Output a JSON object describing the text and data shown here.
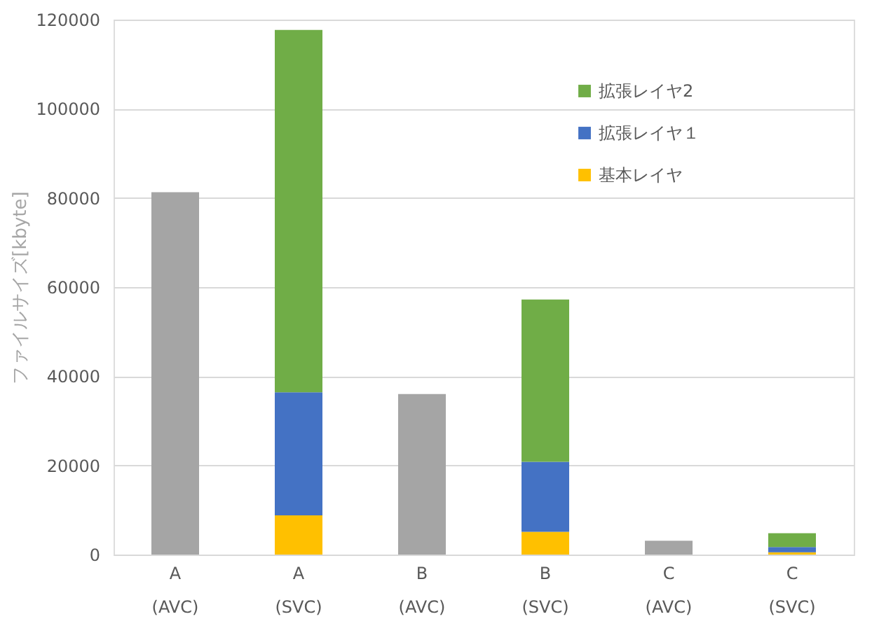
{
  "chart_data": {
    "type": "bar",
    "stacked": true,
    "ylabel": "ファイルサイズ[kbyte]",
    "categories": [
      "A\n(AVC)",
      "A\n(SVC)",
      "B\n(AVC)",
      "B\n(SVC)",
      "C\n(AVC)",
      "C\n(SVC)"
    ],
    "series": [
      {
        "color": "#a5a5a5",
        "values": [
          81300,
          null,
          36000,
          null,
          3100,
          null
        ]
      },
      {
        "name": "基本レイヤ",
        "color": "#ffc000",
        "values": [
          null,
          8800,
          null,
          5100,
          null,
          500
        ]
      },
      {
        "name": "拡張レイヤ１",
        "color": "#4472c4",
        "values": [
          null,
          27600,
          null,
          15700,
          null,
          1200
        ]
      },
      {
        "name": "拡張レイヤ2",
        "color": "#70ad47",
        "values": [
          null,
          81300,
          null,
          36400,
          null,
          3100
        ]
      }
    ],
    "ylim": [
      0,
      120000
    ],
    "yticks": [
      0,
      20000,
      40000,
      60000,
      80000,
      100000,
      120000
    ],
    "grid": "y",
    "legend": "top right"
  }
}
